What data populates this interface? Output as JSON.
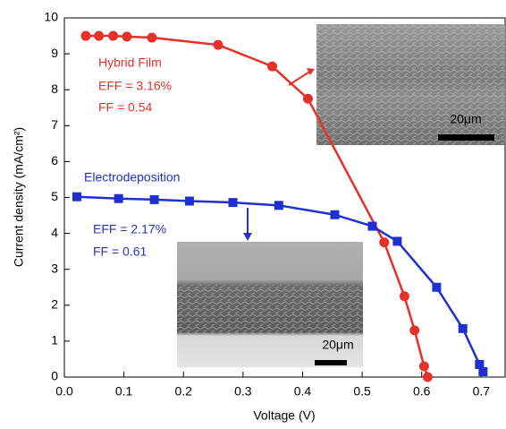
{
  "chart_data": {
    "type": "line",
    "x_label": "Voltage (V)",
    "y_label": "Current density (mA/cm²)",
    "xlim": [
      0,
      0.74
    ],
    "ylim": [
      0,
      10
    ],
    "xticks": [
      {
        "value": 0,
        "label": "0.0"
      },
      0.1,
      0.2,
      0.3,
      0.4,
      0.5,
      0.6,
      0.7
    ],
    "yticks": [
      0,
      1,
      2,
      3,
      4,
      5,
      6,
      7,
      8,
      9,
      10
    ],
    "series": [
      {
        "name": "Hybrid Film",
        "color": "#e8302a",
        "marker": "circle",
        "x": [
          0.036,
          0.058,
          0.082,
          0.105,
          0.147,
          0.258,
          0.349,
          0.409,
          0.537,
          0.571,
          0.588,
          0.604,
          0.61
        ],
        "values": [
          9.5,
          9.5,
          9.5,
          9.48,
          9.45,
          9.25,
          8.65,
          7.75,
          3.75,
          2.25,
          1.3,
          0.3,
          0
        ]
      },
      {
        "name": "Electrodeposition",
        "color": "#1f30d0",
        "marker": "square",
        "x": [
          0.021,
          0.091,
          0.151,
          0.21,
          0.283,
          0.36,
          0.454,
          0.517,
          0.559,
          0.625,
          0.669,
          0.697,
          0.703
        ],
        "values": [
          5.02,
          4.97,
          4.94,
          4.9,
          4.86,
          4.78,
          4.52,
          4.2,
          3.78,
          2.5,
          1.35,
          0.35,
          0.15
        ]
      }
    ],
    "annotations": [
      {
        "text": "EFF = 3.16%",
        "color": "#e8302a"
      },
      {
        "text": "FF = 0.54",
        "color": "#e8302a"
      },
      {
        "text": "EFF = 2.17%",
        "color": "#2a35b0"
      },
      {
        "text": "FF = 0.61",
        "color": "#2a35b0"
      }
    ],
    "insets": [
      {
        "scale_label": "20μm"
      },
      {
        "scale_label": "20μm"
      }
    ]
  }
}
